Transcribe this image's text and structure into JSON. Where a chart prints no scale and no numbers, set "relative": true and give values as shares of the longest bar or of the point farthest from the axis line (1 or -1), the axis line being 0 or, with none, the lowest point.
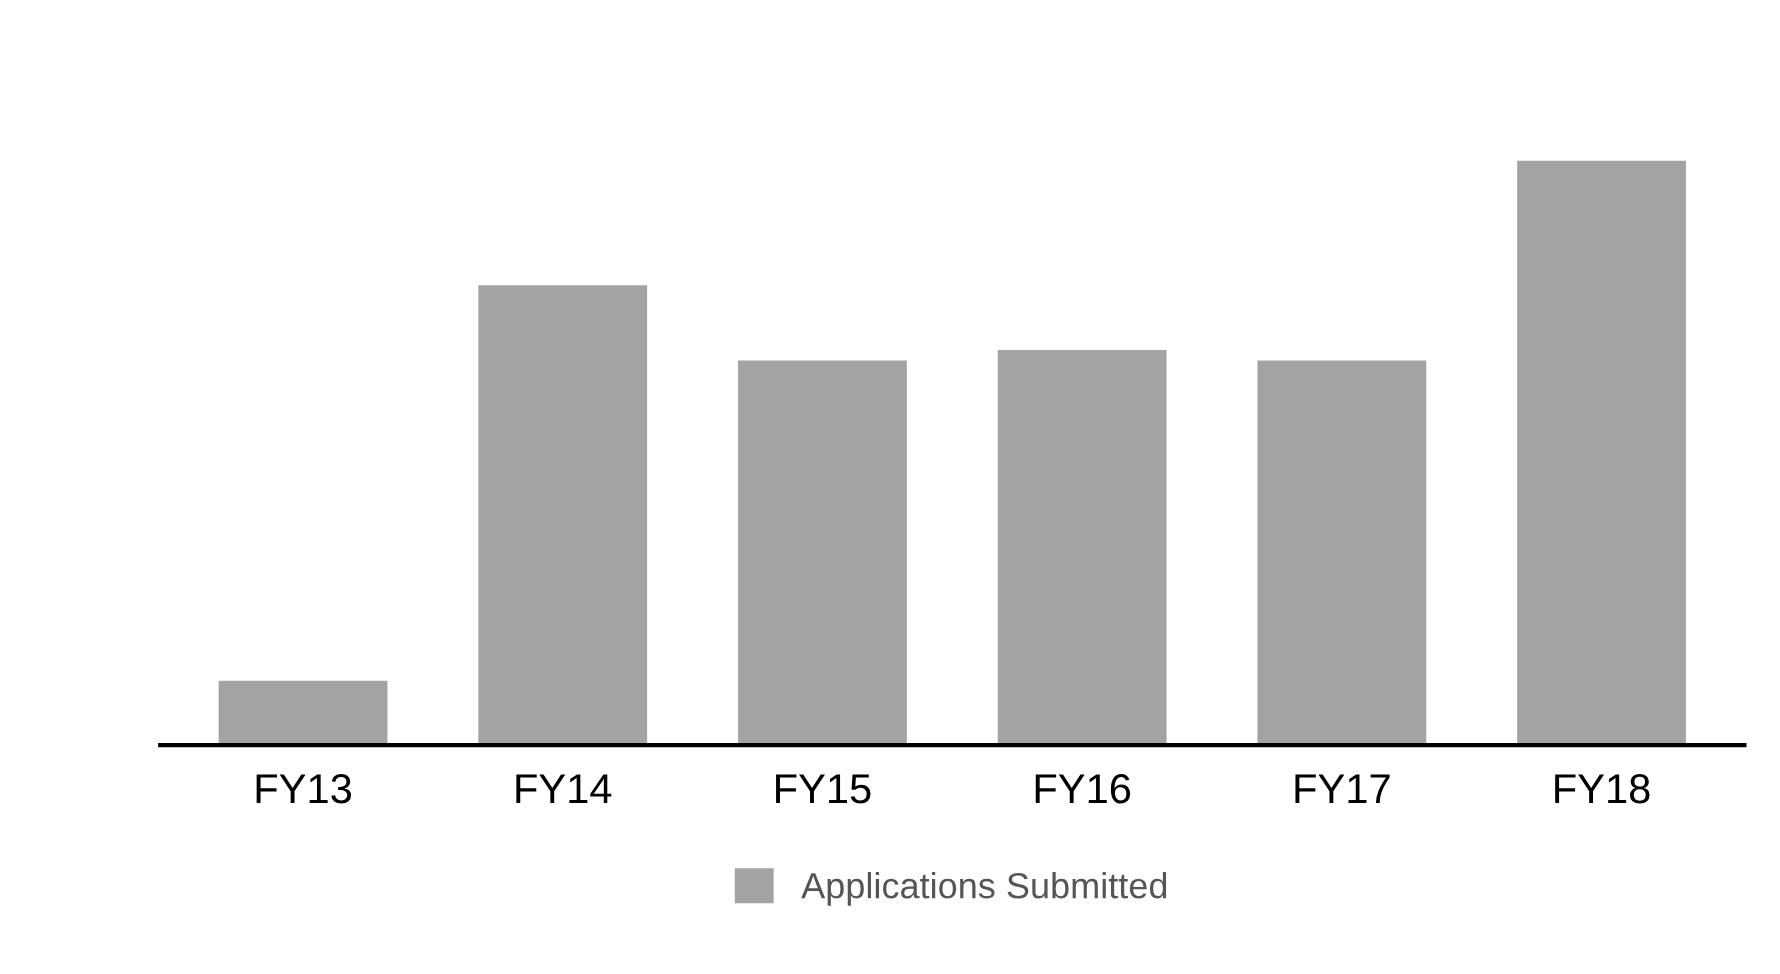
{
  "chart_data": {
    "type": "bar",
    "relative": true,
    "categories": [
      "FY13",
      "FY14",
      "FY15",
      "FY16",
      "FY17",
      "FY18"
    ],
    "series": [
      {
        "name": "Applications Submitted",
        "color": "#a3a3a3",
        "values": [
          0.11,
          0.787,
          0.658,
          0.676,
          0.658,
          1
        ]
      }
    ],
    "legend": "bottom",
    "grid": false
  }
}
